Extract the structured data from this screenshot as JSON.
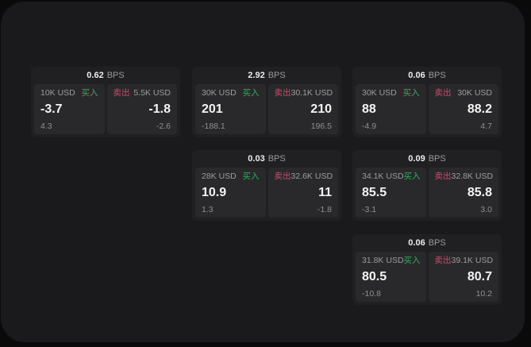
{
  "labels": {
    "buy": "买入",
    "sell": "卖出",
    "bps": "BPS"
  },
  "colors": {
    "background": "#0a0a0b",
    "panel": "#1a1a1c",
    "card": "#202022",
    "tile": "#29292b",
    "buy_green": "#2fae62",
    "sell_red": "#cb4a68",
    "price_text": "#f4f4f4",
    "muted_text": "#9c9c9c"
  },
  "cards": [
    {
      "bps": "0.62",
      "buy": {
        "amount": "10K USD",
        "price": "-3.7",
        "delta": "4.3"
      },
      "sell": {
        "amount": "5.5K USD",
        "price": "-1.8",
        "delta": "-2.6"
      }
    },
    {
      "bps": "2.92",
      "buy": {
        "amount": "30K USD",
        "price": "201",
        "delta": "-188.1"
      },
      "sell": {
        "amount": "30.1K USD",
        "price": "210",
        "delta": "196.5"
      }
    },
    {
      "bps": "0.06",
      "buy": {
        "amount": "30K USD",
        "price": "88",
        "delta": "-4.9"
      },
      "sell": {
        "amount": "30K USD",
        "price": "88.2",
        "delta": "4.7"
      }
    },
    {
      "bps": "0.03",
      "buy": {
        "amount": "28K USD",
        "price": "10.9",
        "delta": "1.3"
      },
      "sell": {
        "amount": "32.6K USD",
        "price": "11",
        "delta": "-1.8"
      }
    },
    {
      "bps": "0.09",
      "buy": {
        "amount": "34.1K USD",
        "price": "85.5",
        "delta": "-3.1"
      },
      "sell": {
        "amount": "32.8K USD",
        "price": "85.8",
        "delta": "3.0"
      }
    },
    {
      "bps": "0.06",
      "buy": {
        "amount": "31.8K USD",
        "price": "80.5",
        "delta": "-10.8"
      },
      "sell": {
        "amount": "39.1K USD",
        "price": "80.7",
        "delta": "10.2"
      }
    }
  ]
}
